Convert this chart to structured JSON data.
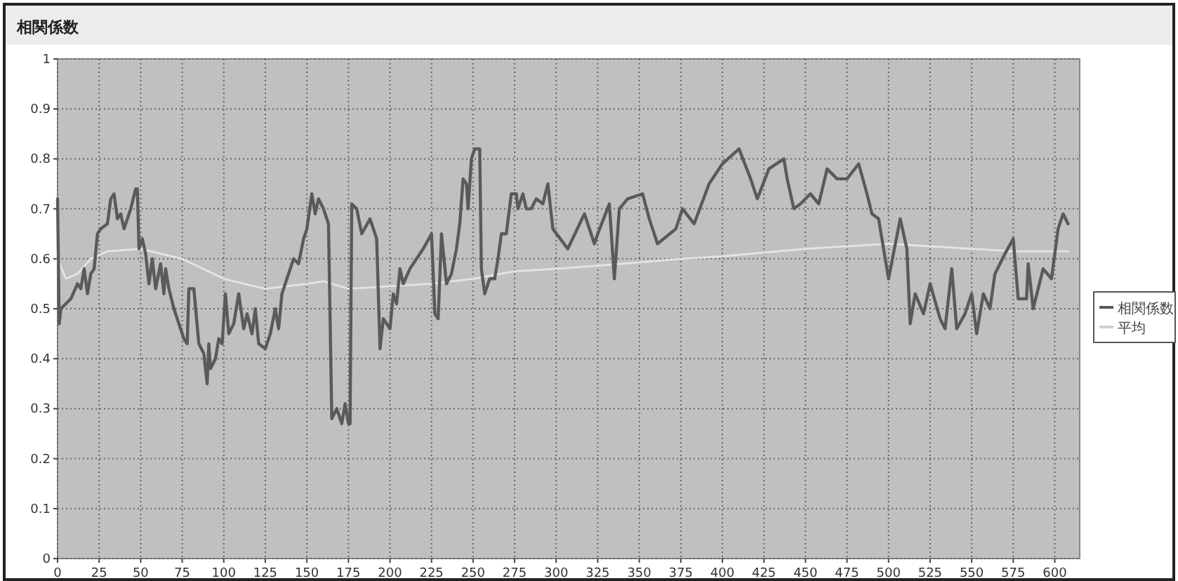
{
  "chart_data": {
    "type": "line",
    "title": "相関係数",
    "xlim": [
      0,
      615
    ],
    "ylim": [
      0,
      1
    ],
    "xticks": [
      0,
      25,
      50,
      75,
      100,
      125,
      150,
      175,
      200,
      225,
      250,
      275,
      300,
      325,
      350,
      375,
      400,
      425,
      450,
      475,
      500,
      525,
      550,
      575,
      600
    ],
    "yticks": [
      0,
      0.1,
      0.2,
      0.3,
      0.4,
      0.5,
      0.6,
      0.7,
      0.8,
      0.9,
      1
    ],
    "grid": true,
    "legend": "right",
    "marker": "none",
    "line_style": "solid",
    "series": [
      {
        "name": "相関係数",
        "color": "#5a5a5a",
        "x": [
          0,
          1,
          2,
          5,
          8,
          12,
          14,
          16,
          18,
          20,
          22,
          24,
          26,
          30,
          32,
          34,
          36,
          38,
          40,
          44,
          47,
          48,
          49,
          51,
          53,
          55,
          57,
          59,
          62,
          64,
          65,
          67,
          70,
          73,
          76,
          78,
          79,
          82,
          85,
          88,
          90,
          91,
          92,
          95,
          97,
          99,
          101,
          103,
          106,
          109,
          112,
          114,
          117,
          119,
          121,
          125,
          128,
          131,
          133,
          135,
          138,
          142,
          145,
          148,
          150,
          153,
          155,
          157,
          160,
          163,
          165,
          168,
          171,
          173,
          175,
          176,
          177,
          180,
          183,
          188,
          192,
          194,
          196,
          200,
          202,
          204,
          206,
          208,
          212,
          216,
          220,
          225,
          227,
          229,
          231,
          234,
          237,
          240,
          242,
          244,
          246,
          247,
          249,
          251,
          254,
          255,
          257,
          260,
          263,
          265,
          267,
          270,
          273,
          276,
          277,
          280,
          282,
          285,
          288,
          292,
          295,
          298,
          307,
          317,
          323,
          325,
          332,
          335,
          338,
          343,
          352,
          356,
          361,
          372,
          376,
          383,
          392,
          400,
          410,
          417,
          421,
          428,
          437,
          439,
          443,
          447,
          453,
          458,
          463,
          469,
          475,
          482,
          487,
          490,
          494,
          500,
          507,
          511,
          513,
          516,
          521,
          525,
          531,
          534,
          538,
          541,
          546,
          550,
          553,
          557,
          561,
          564,
          570,
          575,
          578,
          583,
          584,
          587,
          593,
          598,
          602,
          605,
          608
        ],
        "values": [
          0.72,
          0.47,
          0.5,
          0.51,
          0.52,
          0.55,
          0.54,
          0.58,
          0.53,
          0.57,
          0.58,
          0.65,
          0.66,
          0.67,
          0.72,
          0.73,
          0.68,
          0.69,
          0.66,
          0.7,
          0.74,
          0.74,
          0.62,
          0.64,
          0.61,
          0.55,
          0.6,
          0.54,
          0.59,
          0.53,
          0.58,
          0.54,
          0.5,
          0.47,
          0.44,
          0.43,
          0.54,
          0.54,
          0.43,
          0.41,
          0.35,
          0.43,
          0.38,
          0.4,
          0.44,
          0.43,
          0.53,
          0.45,
          0.47,
          0.53,
          0.46,
          0.49,
          0.45,
          0.5,
          0.43,
          0.42,
          0.45,
          0.5,
          0.46,
          0.53,
          0.56,
          0.6,
          0.59,
          0.64,
          0.66,
          0.73,
          0.69,
          0.72,
          0.7,
          0.67,
          0.28,
          0.3,
          0.27,
          0.31,
          0.27,
          0.27,
          0.71,
          0.7,
          0.65,
          0.68,
          0.64,
          0.42,
          0.48,
          0.46,
          0.53,
          0.51,
          0.58,
          0.55,
          0.58,
          0.6,
          0.62,
          0.65,
          0.49,
          0.48,
          0.65,
          0.55,
          0.57,
          0.62,
          0.67,
          0.76,
          0.75,
          0.7,
          0.8,
          0.82,
          0.82,
          0.58,
          0.53,
          0.56,
          0.56,
          0.6,
          0.65,
          0.65,
          0.73,
          0.73,
          0.7,
          0.73,
          0.7,
          0.7,
          0.72,
          0.71,
          0.75,
          0.66,
          0.62,
          0.69,
          0.63,
          0.65,
          0.71,
          0.56,
          0.7,
          0.72,
          0.73,
          0.68,
          0.63,
          0.66,
          0.7,
          0.67,
          0.75,
          0.79,
          0.82,
          0.76,
          0.72,
          0.78,
          0.8,
          0.76,
          0.7,
          0.71,
          0.73,
          0.71,
          0.78,
          0.76,
          0.76,
          0.79,
          0.73,
          0.69,
          0.68,
          0.56,
          0.68,
          0.62,
          0.47,
          0.53,
          0.49,
          0.55,
          0.48,
          0.46,
          0.58,
          0.46,
          0.49,
          0.53,
          0.45,
          0.53,
          0.5,
          0.57,
          0.61,
          0.64,
          0.52,
          0.52,
          0.59,
          0.5,
          0.58,
          0.56,
          0.66,
          0.69,
          0.67
        ]
      },
      {
        "name": "平均",
        "color": "#e4e4e4",
        "x": [
          0,
          5,
          12,
          20,
          30,
          50,
          75,
          100,
          125,
          150,
          160,
          175,
          200,
          225,
          250,
          275,
          300,
          340,
          375,
          400,
          450,
          500,
          525,
          550,
          575,
          608
        ],
        "values": [
          0.6,
          0.56,
          0.57,
          0.6,
          0.615,
          0.62,
          0.6,
          0.56,
          0.54,
          0.55,
          0.555,
          0.54,
          0.545,
          0.55,
          0.56,
          0.575,
          0.58,
          0.59,
          0.6,
          0.605,
          0.62,
          0.63,
          0.625,
          0.62,
          0.615,
          0.615
        ]
      }
    ]
  }
}
